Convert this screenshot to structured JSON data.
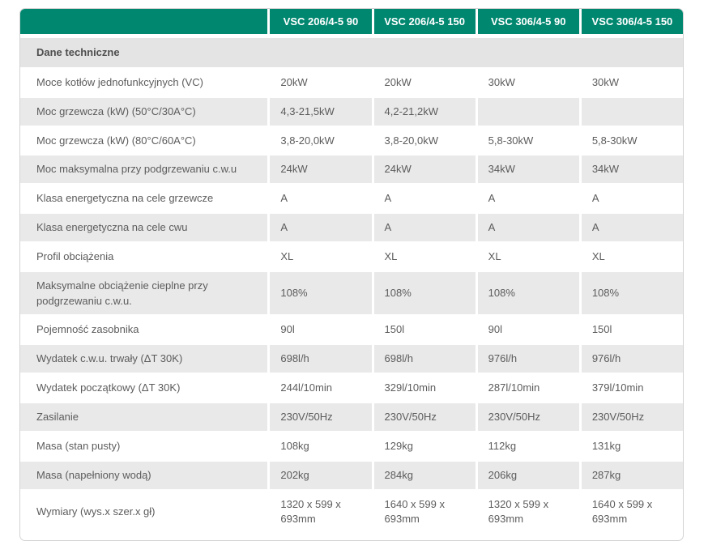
{
  "table": {
    "columns": [
      "VSC 206/4-5 90",
      "VSC 206/4-5 150",
      "VSC 306/4-5 90",
      "VSC 306/4-5 150"
    ],
    "section_title": "Dane techniczne",
    "rows": [
      {
        "label": "Moce kotłów jednofunkcyjnych (VC)",
        "values": [
          "20kW",
          "20kW",
          "30kW",
          "30kW"
        ]
      },
      {
        "label": "Moc grzewcza (kW) (50°C/30A°C)",
        "values": [
          "4,3-21,5kW",
          "4,2-21,2kW",
          "",
          ""
        ]
      },
      {
        "label": "Moc grzewcza (kW) (80°C/60A°C)",
        "values": [
          "3,8-20,0kW",
          "3,8-20,0kW",
          "5,8-30kW",
          "5,8-30kW"
        ]
      },
      {
        "label": "Moc maksymalna przy podgrzewaniu c.w.u",
        "values": [
          "24kW",
          "24kW",
          "34kW",
          "34kW"
        ]
      },
      {
        "label": "Klasa energetyczna na cele grzewcze",
        "values": [
          "A",
          "A",
          "A",
          "A"
        ]
      },
      {
        "label": "Klasa energetyczna na cele cwu",
        "values": [
          "A",
          "A",
          "A",
          "A"
        ]
      },
      {
        "label": "Profil obciążenia",
        "values": [
          "XL",
          "XL",
          "XL",
          "XL"
        ]
      },
      {
        "label": "Maksymalne obciążenie cieplne przy podgrzewaniu c.w.u.",
        "values": [
          "108%",
          "108%",
          "108%",
          "108%"
        ]
      },
      {
        "label": "Pojemność zasobnika",
        "values": [
          "90l",
          "150l",
          "90l",
          "150l"
        ]
      },
      {
        "label": "Wydatek c.w.u. trwały (ΔT 30K)",
        "values": [
          "698l/h",
          "698l/h",
          "976l/h",
          "976l/h"
        ]
      },
      {
        "label": "Wydatek początkowy (ΔT 30K)",
        "values": [
          "244l/10min",
          "329l/10min",
          "287l/10min",
          "379l/10min"
        ]
      },
      {
        "label": "Zasilanie",
        "values": [
          "230V/50Hz",
          "230V/50Hz",
          "230V/50Hz",
          "230V/50Hz"
        ]
      },
      {
        "label": "Masa (stan pusty)",
        "values": [
          "108kg",
          "129kg",
          "112kg",
          "131kg"
        ]
      },
      {
        "label": "Masa (napełniony wodą)",
        "values": [
          "202kg",
          "284kg",
          "206kg",
          "287kg"
        ]
      },
      {
        "label": "Wymiary (wys.x szer.x gł)",
        "values": [
          "1320 x 599 x 693mm",
          "1640 x 599 x 693mm",
          "1320 x 599 x 693mm",
          "1640 x 599 x 693mm"
        ]
      }
    ],
    "colors": {
      "header_bg": "#008770",
      "header_text": "#ffffff",
      "section_bg": "#e4e4e4",
      "row_alt_bg": "#e9e9e9",
      "body_text": "#5c5c5c",
      "border": "#d3d3d3"
    }
  }
}
